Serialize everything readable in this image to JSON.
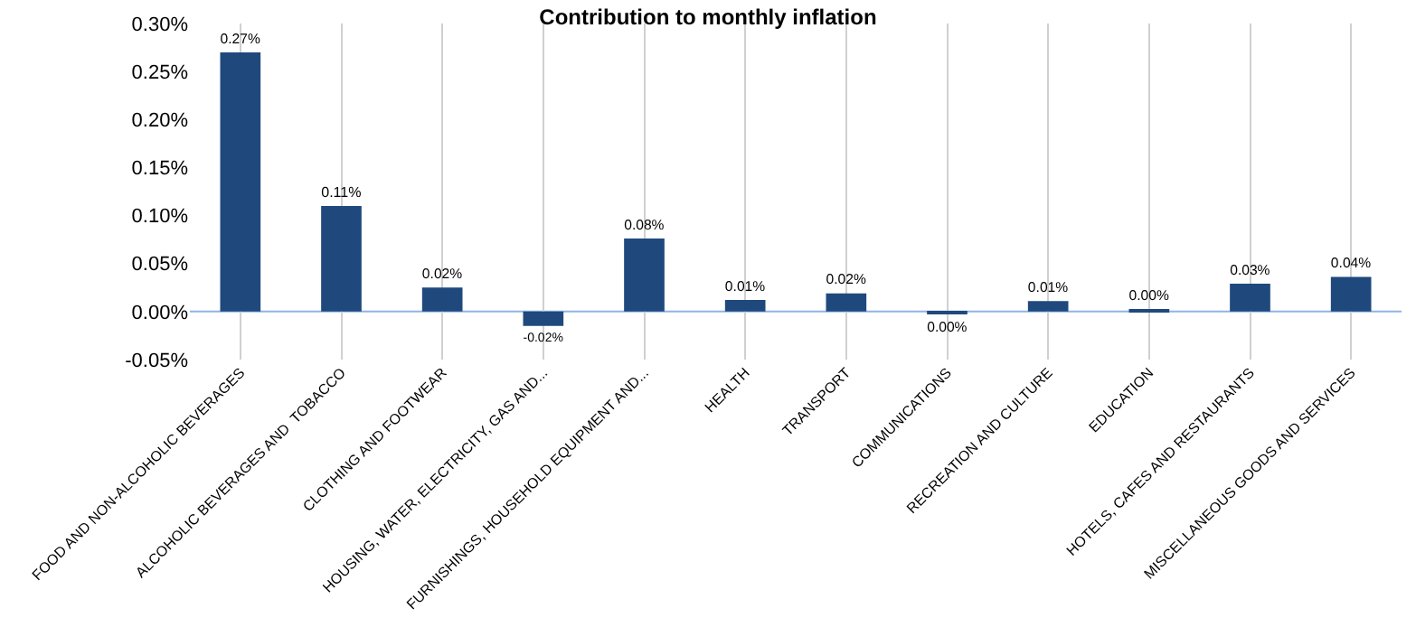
{
  "chart_data": {
    "type": "bar",
    "title": "Contribution to monthly inflation",
    "categories": [
      "FOOD AND NON-ALCOHOLIC BEVERAGES",
      "ALCOHOLIC BEVERAGES AND  TOBACCO",
      "CLOTHING AND FOOTWEAR",
      "HOUSING, WATER, ELECTRICITY, GAS AND...",
      "FURNISHINGS, HOUSEHOLD EQUIPMENT AND...",
      "HEALTH",
      "TRANSPORT",
      "COMMUNICATIONS",
      "RECREATION AND CULTURE",
      "EDUCATION",
      "HOTELS, CAFES AND RESTAURANTS",
      "MISCELLANEOUS GOODS AND SERVICES"
    ],
    "values": [
      0.27,
      0.11,
      0.025,
      -0.015,
      0.076,
      0.012,
      0.019,
      -0.002,
      0.011,
      0.002,
      0.029,
      0.036
    ],
    "ref_lines": [
      {
        "axis": "y",
        "value": 0,
        "color": "#8eb4e3"
      }
    ],
    "value_labels": [
      "0.27%",
      "0.11%",
      "0.02%",
      "-0.02%",
      "0.08%",
      "0.01%",
      "0.02%",
      "0.00%",
      "0.01%",
      "0.00%",
      "0.03%",
      "0.04%"
    ],
    "color": "#1f497d",
    "ylim": [
      -0.05,
      0.3
    ],
    "yticks": [
      {
        "value": -0.05,
        "label": "-0.05%"
      },
      {
        "value": 0,
        "label": "0.00%"
      },
      {
        "value": 0.05,
        "label": "0.05%"
      },
      {
        "value": 0.1,
        "label": "0.10%"
      },
      {
        "value": 0.15,
        "label": "0.15%"
      },
      {
        "value": 0.2,
        "label": "0.20%"
      },
      {
        "value": 0.25,
        "label": "0.25%"
      },
      {
        "value": 0.3,
        "label": "0.30%"
      }
    ],
    "grid": "x"
  }
}
